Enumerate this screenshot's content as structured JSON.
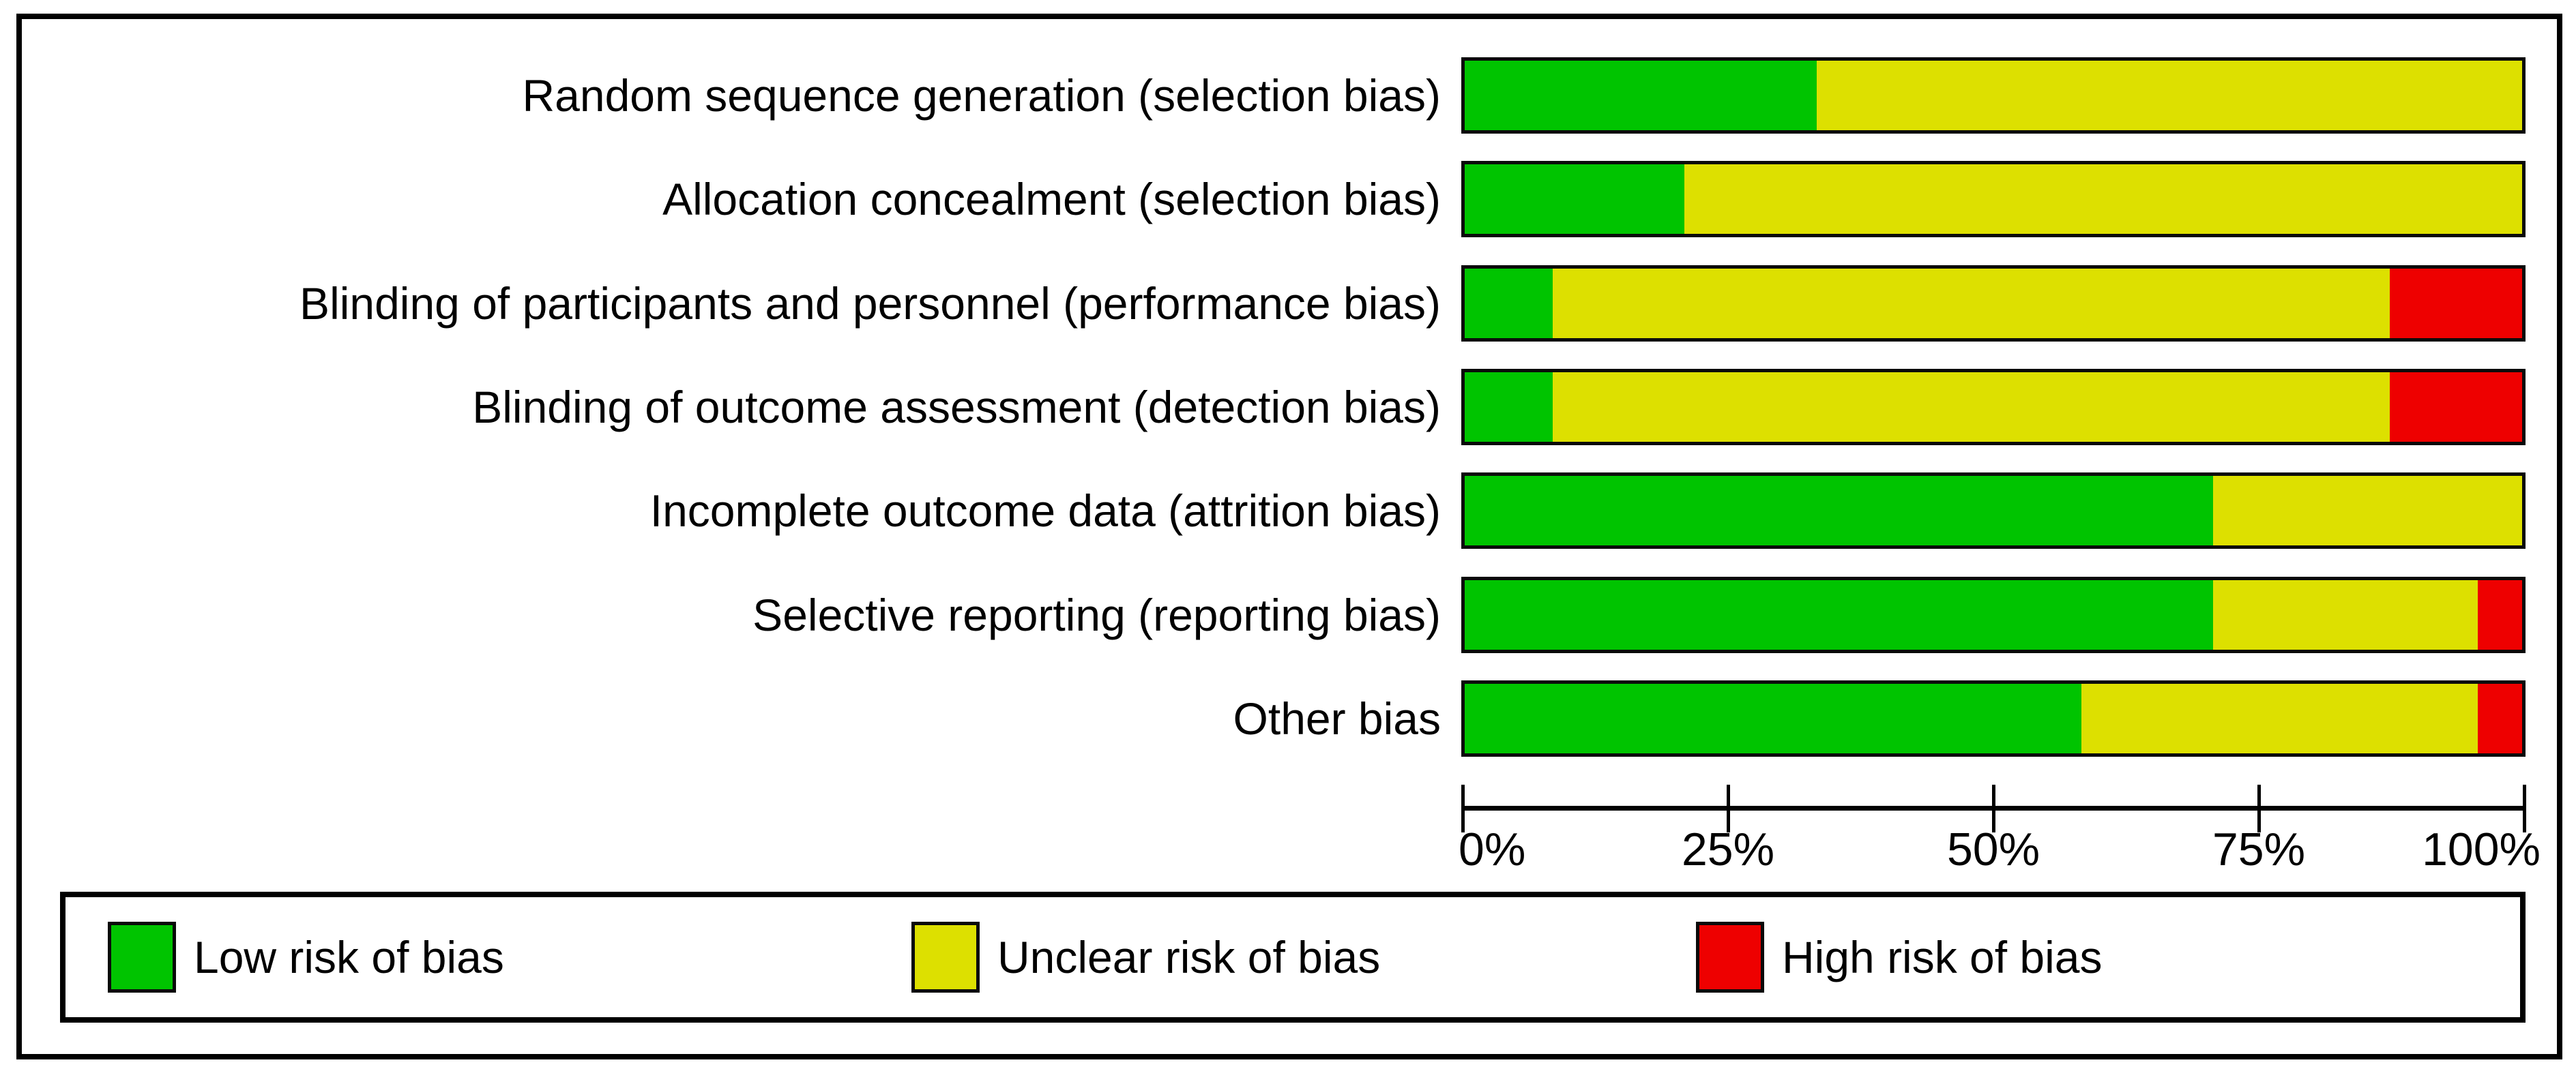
{
  "figure": {
    "kind": "risk-of-bias-graph"
  },
  "colors": {
    "low": "#00C400",
    "unclear": "#DDE000",
    "high": "#EE0000",
    "ink": "#000000",
    "background": "#FFFFFF"
  },
  "chart_data": {
    "type": "bar",
    "stacked": true,
    "orientation": "horizontal",
    "unit": "percent",
    "title": "",
    "xlabel": "",
    "ylabel": "",
    "xlim": [
      0,
      100
    ],
    "grid": false,
    "legend_position": "bottom",
    "categories": [
      "Random sequence generation (selection bias)",
      "Allocation concealment (selection bias)",
      "Blinding of participants and personnel (performance bias)",
      "Blinding of outcome assessment (detection bias)",
      "Incomplete outcome data (attrition bias)",
      "Selective reporting (reporting bias)",
      "Other bias"
    ],
    "series": [
      {
        "name": "Low risk of bias",
        "color_key": "low",
        "values": [
          33.3,
          20.8,
          8.3,
          8.3,
          70.8,
          70.8,
          58.3
        ]
      },
      {
        "name": "Unclear risk of bias",
        "color_key": "unclear",
        "values": [
          66.7,
          79.2,
          79.2,
          79.2,
          29.2,
          25.0,
          37.5
        ]
      },
      {
        "name": "High risk of bias",
        "color_key": "high",
        "values": [
          0,
          0,
          12.5,
          12.5,
          0,
          4.2,
          4.2
        ]
      }
    ],
    "x_ticks": [
      {
        "value": 0,
        "label": "0%",
        "anchor": "start"
      },
      {
        "value": 25,
        "label": "25%",
        "anchor": "middle"
      },
      {
        "value": 50,
        "label": "50%",
        "anchor": "middle"
      },
      {
        "value": 75,
        "label": "75%",
        "anchor": "middle"
      },
      {
        "value": 100,
        "label": "100%",
        "anchor": "end"
      }
    ]
  },
  "legend": {
    "items": [
      {
        "label": "Low risk of bias",
        "color_key": "low"
      },
      {
        "label": "Unclear risk of bias",
        "color_key": "unclear"
      },
      {
        "label": "High risk of bias",
        "color_key": "high"
      }
    ]
  }
}
